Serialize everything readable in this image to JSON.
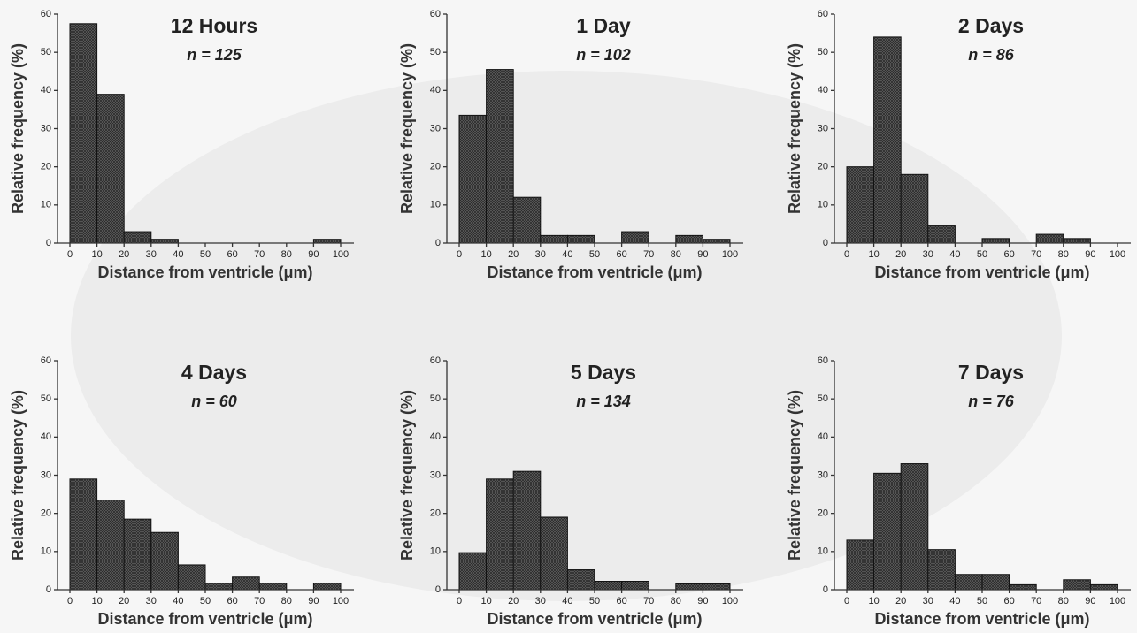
{
  "chart_data": [
    {
      "type": "histogram",
      "title": "12 Hours",
      "subtitle": "n = 125",
      "ylabel": "Relative frequency (%)",
      "xlabel": "Distance from ventricle (μm)",
      "color": "#555555",
      "bins": [
        0,
        10,
        20,
        30,
        40,
        50,
        60,
        70,
        80,
        90,
        100
      ],
      "counts": [
        57.5,
        39,
        3,
        1,
        0,
        0,
        0,
        0,
        0,
        1
      ],
      "xlim": [
        0,
        100
      ],
      "xticks": [
        0,
        10,
        20,
        30,
        40,
        50,
        60,
        70,
        80,
        90,
        100
      ],
      "ylim": [
        0,
        60
      ],
      "yticks": [
        0,
        10,
        20,
        30,
        40,
        50,
        60
      ]
    },
    {
      "type": "histogram",
      "title": "1 Day",
      "subtitle": "n = 102",
      "ylabel": "Relative frequency (%)",
      "xlabel": "Distance from ventricle (μm)",
      "color": "#555555",
      "bins": [
        0,
        10,
        20,
        30,
        40,
        50,
        60,
        70,
        80,
        90,
        100
      ],
      "counts": [
        33.5,
        45.5,
        12,
        2,
        2,
        0,
        3,
        0,
        2,
        1
      ],
      "xlim": [
        0,
        100
      ],
      "xticks": [
        0,
        10,
        20,
        30,
        40,
        50,
        60,
        70,
        80,
        90,
        100
      ],
      "ylim": [
        0,
        60
      ],
      "yticks": [
        0,
        10,
        20,
        30,
        40,
        50,
        60
      ]
    },
    {
      "type": "histogram",
      "title": "2 Days",
      "subtitle": "n = 86",
      "ylabel": "Relative frequency (%)",
      "xlabel": "Distance from ventricle (μm)",
      "color": "#555555",
      "bins": [
        0,
        10,
        20,
        30,
        40,
        50,
        60,
        70,
        80,
        90,
        100
      ],
      "counts": [
        20,
        54,
        18,
        4.5,
        0,
        1.2,
        0,
        2.3,
        1.2,
        0
      ],
      "xlim": [
        0,
        100
      ],
      "xticks": [
        0,
        10,
        20,
        30,
        40,
        50,
        60,
        70,
        80,
        90,
        100
      ],
      "ylim": [
        0,
        60
      ],
      "yticks": [
        0,
        10,
        20,
        30,
        40,
        50,
        60
      ]
    },
    {
      "type": "histogram",
      "title": "4 Days",
      "subtitle": "n = 60",
      "ylabel": "Relative frequency (%)",
      "xlabel": "Distance from ventricle (μm)",
      "color": "#555555",
      "bins": [
        0,
        10,
        20,
        30,
        40,
        50,
        60,
        70,
        80,
        90,
        100
      ],
      "counts": [
        29,
        23.5,
        18.5,
        15,
        6.5,
        1.7,
        3.3,
        1.7,
        0,
        1.7
      ],
      "xlim": [
        0,
        100
      ],
      "xticks": [
        0,
        10,
        20,
        30,
        40,
        50,
        60,
        70,
        80,
        90,
        100
      ],
      "ylim": [
        0,
        60
      ],
      "yticks": [
        0,
        10,
        20,
        30,
        40,
        50,
        60
      ]
    },
    {
      "type": "histogram",
      "title": "5 Days",
      "subtitle": "n = 134",
      "ylabel": "Relative frequency (%)",
      "xlabel": "Distance from ventricle (μm)",
      "color": "#555555",
      "bins": [
        0,
        10,
        20,
        30,
        40,
        50,
        60,
        70,
        80,
        90,
        100
      ],
      "counts": [
        9.7,
        29,
        31,
        19,
        5.2,
        2.2,
        2.2,
        0,
        1.5,
        1.5
      ],
      "xlim": [
        0,
        100
      ],
      "xticks": [
        0,
        10,
        20,
        30,
        40,
        50,
        60,
        70,
        80,
        90,
        100
      ],
      "ylim": [
        0,
        60
      ],
      "yticks": [
        0,
        10,
        20,
        30,
        40,
        50,
        60
      ]
    },
    {
      "type": "histogram",
      "title": "7 Days",
      "subtitle": "n = 76",
      "ylabel": "Relative frequency (%)",
      "xlabel": "Distance from ventricle (μm)",
      "color": "#555555",
      "bins": [
        0,
        10,
        20,
        30,
        40,
        50,
        60,
        70,
        80,
        90,
        100
      ],
      "counts": [
        13,
        30.5,
        33,
        10.5,
        4,
        4,
        1.3,
        0,
        2.6,
        1.3
      ],
      "xlim": [
        0,
        100
      ],
      "xticks": [
        0,
        10,
        20,
        30,
        40,
        50,
        60,
        70,
        80,
        90,
        100
      ],
      "ylim": [
        0,
        60
      ],
      "yticks": [
        0,
        10,
        20,
        30,
        40,
        50,
        60
      ]
    }
  ]
}
